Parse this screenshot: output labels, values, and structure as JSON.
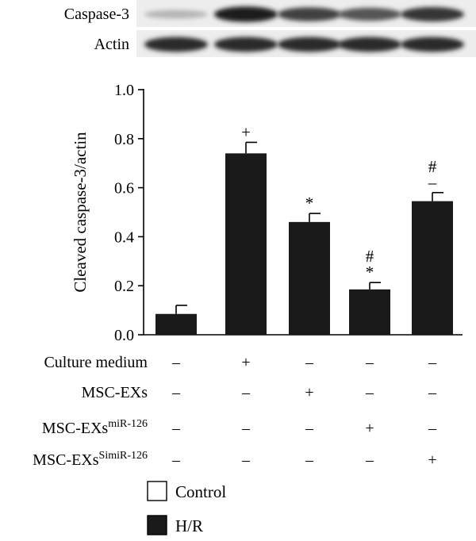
{
  "blot": {
    "rows": [
      {
        "label": "Caspase-3",
        "intensities": [
          0.25,
          0.95,
          0.8,
          0.7,
          0.85
        ]
      },
      {
        "label": "Actin",
        "intensities": [
          0.9,
          0.9,
          0.9,
          0.9,
          0.9
        ]
      }
    ]
  },
  "chart_data": {
    "type": "bar",
    "ylabel": "Cleaved caspase-3/actin",
    "ylim": [
      0,
      1.0
    ],
    "yticks": [
      "0.0",
      "0.2",
      "0.4",
      "0.6",
      "0.8",
      "1.0"
    ],
    "bars": [
      {
        "value": 0.085,
        "error": 0.035,
        "annotations": []
      },
      {
        "value": 0.74,
        "error": 0.045,
        "annotations": [
          "+"
        ]
      },
      {
        "value": 0.46,
        "error": 0.035,
        "annotations": [
          "*"
        ]
      },
      {
        "value": 0.185,
        "error": 0.028,
        "annotations": [
          "*",
          "#"
        ]
      },
      {
        "value": 0.545,
        "error": 0.035,
        "annotations": [
          "–",
          "#"
        ]
      }
    ],
    "conditions": [
      {
        "name": "Culture medium",
        "sup": "",
        "marks": [
          "–",
          "+",
          "–",
          "–",
          "–"
        ]
      },
      {
        "name": "MSC-EXs",
        "sup": "",
        "marks": [
          "–",
          "–",
          "+",
          "–",
          "–"
        ]
      },
      {
        "name": "MSC-EXs",
        "sup": "miR-126",
        "marks": [
          "–",
          "–",
          "–",
          "+",
          "–"
        ]
      },
      {
        "name": "MSC-EXs",
        "sup": "SimiR-126",
        "marks": [
          "–",
          "–",
          "–",
          "–",
          "+"
        ]
      }
    ],
    "legend": [
      {
        "label": "Control",
        "fill": "#ffffff"
      },
      {
        "label": "H/R",
        "fill": "#1a1a1a"
      }
    ],
    "legend_position": "bottom",
    "bar_color": "#1a1a1a"
  }
}
